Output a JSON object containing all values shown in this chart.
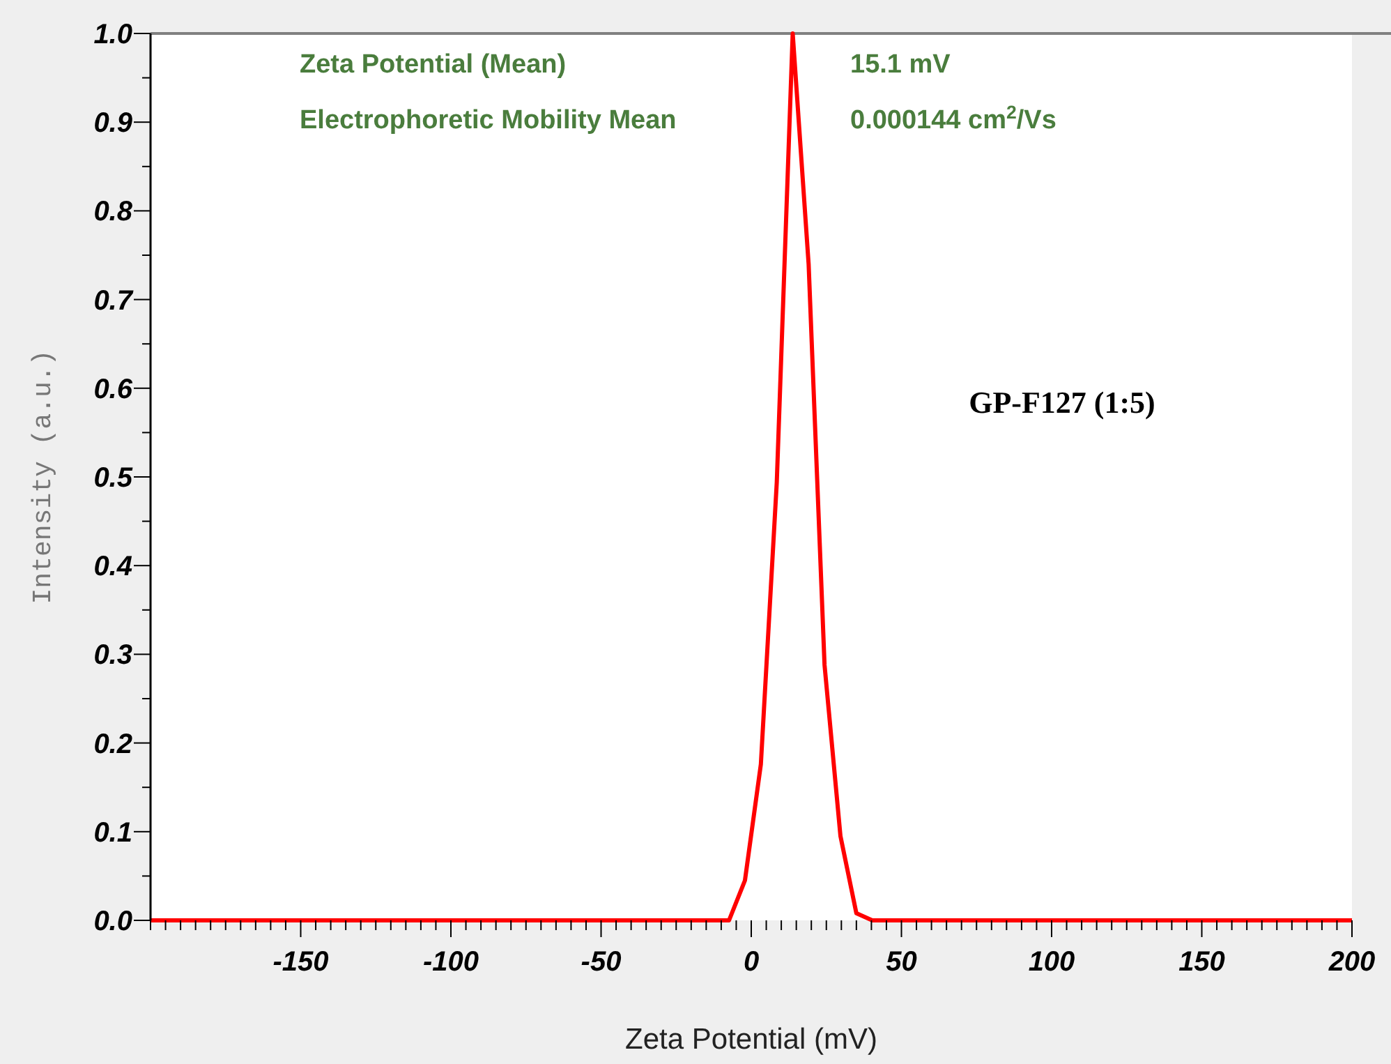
{
  "chart_data": {
    "type": "line",
    "xlabel": "Zeta Potential (mV)",
    "ylabel": "Intensity (a.u.)",
    "annotations": [
      "Zeta Potential (Mean)",
      "Electrophoretic Mobility Mean",
      "15.1 mV",
      "0.000144 cm$^{2}$/Vs",
      "GP-F127 (1:5)"
    ],
    "series": [
      {
        "color": "#ff0000",
        "x": [
          -200,
          -7.4,
          -2.1,
          3.2,
          8.5,
          13.8,
          19.1,
          24.4,
          29.7,
          35,
          40.3,
          200
        ],
        "values": [
          0,
          0,
          0.045,
          0.176,
          0.494,
          1.0,
          0.74,
          0.288,
          0.095,
          0.008,
          0,
          0
        ]
      }
    ],
    "xlim": [
      -200,
      200
    ],
    "xticks": [
      {
        "value": -200,
        "label": null
      },
      {
        "value": -195,
        "label": null
      },
      {
        "value": -190,
        "label": null
      },
      {
        "value": -185,
        "label": null
      },
      {
        "value": -180,
        "label": null
      },
      {
        "value": -175,
        "label": null
      },
      {
        "value": -170,
        "label": null
      },
      {
        "value": -165,
        "label": null
      },
      {
        "value": -160,
        "label": null
      },
      {
        "value": -155,
        "label": null
      },
      -150,
      {
        "value": -145,
        "label": null
      },
      {
        "value": -140,
        "label": null
      },
      {
        "value": -135,
        "label": null
      },
      {
        "value": -130,
        "label": null
      },
      {
        "value": -125,
        "label": null
      },
      {
        "value": -120,
        "label": null
      },
      {
        "value": -115,
        "label": null
      },
      {
        "value": -110,
        "label": null
      },
      {
        "value": -105,
        "label": null
      },
      -100,
      {
        "value": -95,
        "label": null
      },
      {
        "value": -90,
        "label": null
      },
      {
        "value": -85,
        "label": null
      },
      {
        "value": -80,
        "label": null
      },
      {
        "value": -75,
        "label": null
      },
      {
        "value": -70,
        "label": null
      },
      {
        "value": -65,
        "label": null
      },
      {
        "value": -60,
        "label": null
      },
      {
        "value": -55,
        "label": null
      },
      -50,
      {
        "value": -45,
        "label": null
      },
      {
        "value": -40,
        "label": null
      },
      {
        "value": -35,
        "label": null
      },
      {
        "value": -30,
        "label": null
      },
      {
        "value": -25,
        "label": null
      },
      {
        "value": -20,
        "label": null
      },
      {
        "value": -15,
        "label": null
      },
      {
        "value": -10,
        "label": null
      },
      {
        "value": -5,
        "label": null
      },
      0,
      {
        "value": 5,
        "label": null
      },
      {
        "value": 10,
        "label": null
      },
      {
        "value": 15,
        "label": null
      },
      {
        "value": 20,
        "label": null
      },
      {
        "value": 25,
        "label": null
      },
      {
        "value": 30,
        "label": null
      },
      {
        "value": 35,
        "label": null
      },
      {
        "value": 40,
        "label": null
      },
      {
        "value": 45,
        "label": null
      },
      50,
      {
        "value": 55,
        "label": null
      },
      {
        "value": 60,
        "label": null
      },
      {
        "value": 65,
        "label": null
      },
      {
        "value": 70,
        "label": null
      },
      {
        "value": 75,
        "label": null
      },
      {
        "value": 80,
        "label": null
      },
      {
        "value": 85,
        "label": null
      },
      {
        "value": 90,
        "label": null
      },
      {
        "value": 95,
        "label": null
      },
      100,
      {
        "value": 105,
        "label": null
      },
      {
        "value": 110,
        "label": null
      },
      {
        "value": 115,
        "label": null
      },
      {
        "value": 120,
        "label": null
      },
      {
        "value": 125,
        "label": null
      },
      {
        "value": 130,
        "label": null
      },
      {
        "value": 135,
        "label": null
      },
      {
        "value": 140,
        "label": null
      },
      {
        "value": 145,
        "label": null
      },
      150,
      {
        "value": 155,
        "label": null
      },
      {
        "value": 160,
        "label": null
      },
      {
        "value": 165,
        "label": null
      },
      {
        "value": 170,
        "label": null
      },
      {
        "value": 175,
        "label": null
      },
      {
        "value": 180,
        "label": null
      },
      {
        "value": 185,
        "label": null
      },
      {
        "value": 190,
        "label": null
      },
      {
        "value": 195,
        "label": null
      },
      200
    ],
    "ylim": [
      0,
      1
    ],
    "yticks": [
      {
        "value": 0,
        "label": "0.0"
      },
      {
        "value": 0.05,
        "label": null
      },
      0.1,
      {
        "value": 0.15,
        "label": null
      },
      0.2,
      {
        "value": 0.25,
        "label": null
      },
      0.3,
      {
        "value": 0.35,
        "label": null
      },
      0.4,
      {
        "value": 0.45,
        "label": null
      },
      0.5,
      {
        "value": 0.55,
        "label": null
      },
      0.6,
      {
        "value": 0.65,
        "label": null
      },
      0.7,
      {
        "value": 0.75,
        "label": null
      },
      0.8,
      {
        "value": 0.85,
        "label": null
      },
      0.9,
      {
        "value": 0.95,
        "label": null
      },
      {
        "value": 1,
        "label": "1.0"
      }
    ],
    "grid": false,
    "marker": "none",
    "line_style": "solid"
  }
}
